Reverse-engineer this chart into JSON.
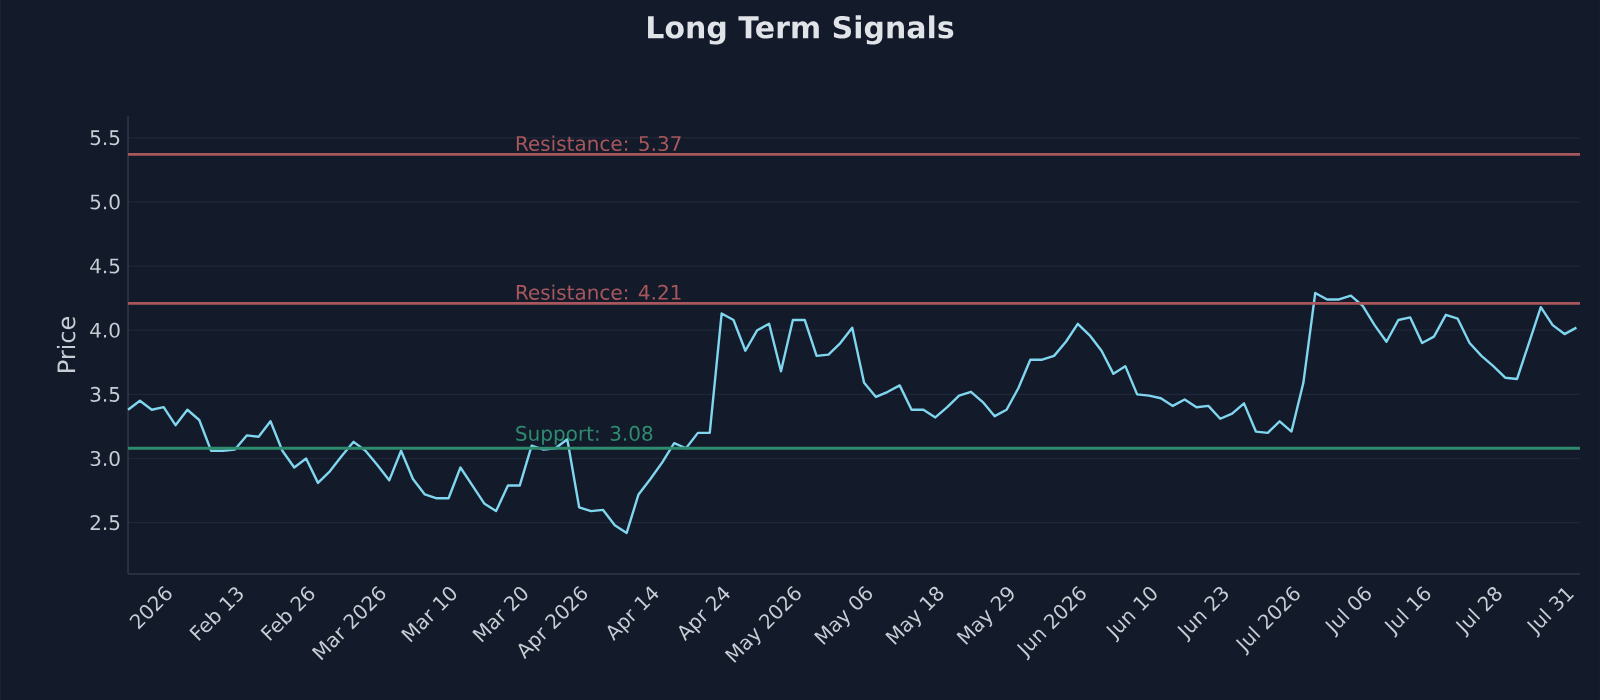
{
  "chart_data": {
    "type": "line",
    "title": "Long Term Signals",
    "ylabel": "Price",
    "categories": [
      null,
      null,
      null,
      "2026",
      null,
      null,
      null,
      null,
      null,
      "Feb 13",
      null,
      null,
      null,
      null,
      null,
      "Feb 26",
      null,
      null,
      null,
      null,
      null,
      "Mar 2026",
      null,
      null,
      null,
      null,
      null,
      "Mar 10",
      null,
      null,
      null,
      null,
      null,
      "Mar 20",
      null,
      null,
      null,
      null,
      "Apr 2026",
      null,
      null,
      null,
      null,
      null,
      "Apr 14",
      null,
      null,
      null,
      null,
      null,
      "Apr 24",
      null,
      null,
      null,
      null,
      null,
      "May 2026",
      null,
      null,
      null,
      null,
      null,
      "May 06",
      null,
      null,
      null,
      null,
      null,
      "May 18",
      null,
      null,
      null,
      null,
      null,
      "May 29",
      null,
      null,
      null,
      null,
      null,
      "Jun 2026",
      null,
      null,
      null,
      null,
      null,
      "Jun 10",
      null,
      null,
      null,
      null,
      null,
      "Jun 23",
      null,
      null,
      null,
      null,
      null,
      "Jul 2026",
      null,
      null,
      null,
      null,
      null,
      "Jul 06",
      null,
      null,
      null,
      null,
      "Jul 16",
      null,
      null,
      null,
      null,
      null,
      "Jul 28",
      null,
      null,
      null,
      null,
      null,
      "Jul 31",
      null
    ],
    "series": [
      {
        "color": "#7fd6ee",
        "values": [
          3.38,
          3.45,
          3.38,
          3.4,
          3.26,
          3.38,
          3.3,
          3.06,
          3.06,
          3.07,
          3.18,
          3.17,
          3.29,
          3.06,
          2.93,
          3.0,
          2.81,
          2.9,
          3.02,
          3.13,
          3.06,
          2.95,
          2.83,
          3.06,
          2.84,
          2.72,
          2.69,
          2.69,
          2.93,
          2.79,
          2.65,
          2.59,
          2.79,
          2.79,
          3.1,
          3.07,
          3.08,
          3.15,
          2.62,
          2.59,
          2.6,
          2.48,
          2.42,
          2.72,
          2.84,
          2.97,
          3.12,
          3.08,
          3.2,
          3.2,
          4.13,
          4.08,
          3.84,
          4.0,
          4.05,
          3.68,
          4.08,
          4.08,
          3.8,
          3.81,
          3.9,
          4.02,
          3.59,
          3.48,
          3.52,
          3.57,
          3.38,
          3.38,
          3.32,
          3.4,
          3.49,
          3.52,
          3.44,
          3.33,
          3.38,
          3.55,
          3.77,
          3.77,
          3.8,
          3.91,
          4.05,
          3.96,
          3.84,
          3.66,
          3.72,
          3.5,
          3.49,
          3.47,
          3.41,
          3.46,
          3.4,
          3.41,
          3.31,
          3.35,
          3.43,
          3.21,
          3.2,
          3.29,
          3.21,
          3.59,
          4.29,
          4.24,
          4.24,
          4.27,
          4.19,
          4.04,
          3.91,
          4.08,
          4.1,
          3.9,
          3.95,
          4.12,
          4.09,
          3.9,
          3.8,
          3.72,
          3.63,
          3.62,
          3.9,
          4.18,
          4.04,
          3.97,
          4.02
        ]
      }
    ],
    "ylim": [
      2.1,
      5.67
    ],
    "yticks": [
      2.5,
      {
        "value": 3,
        "label": "3.0"
      },
      3.5,
      {
        "value": 4,
        "label": "4.0"
      },
      4.5,
      {
        "value": 5,
        "label": "5.0"
      },
      5.5
    ],
    "grid": "y",
    "marker": "none",
    "line_style": "solid",
    "ref_lines": [
      {
        "axis": "y",
        "value": 5.37,
        "label": "Resistance: 5.37",
        "color": "#a8585c"
      },
      {
        "axis": "y",
        "value": 4.21,
        "label": "Resistance: 4.21",
        "color": "#a8585c"
      },
      {
        "axis": "y",
        "value": 3.08,
        "label": "Support: 3.08",
        "color": "#2e8b6e"
      }
    ]
  }
}
